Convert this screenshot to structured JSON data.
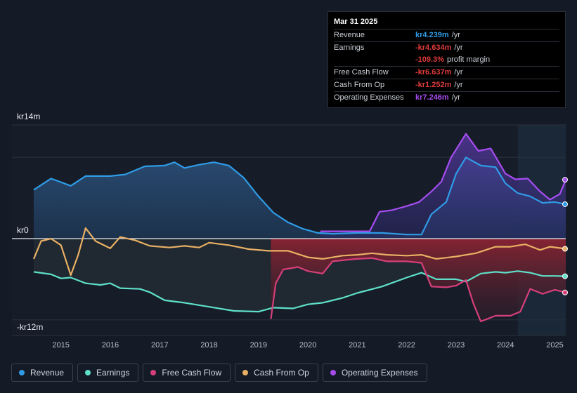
{
  "colors": {
    "revenue": "#2f9be6",
    "earnings": "#5ee0c8",
    "fcf": "#d63f7a",
    "cfo": "#e8b064",
    "opex": "#a64df0"
  },
  "y_axis": {
    "top_label": "kr14m",
    "zero_label": "kr0",
    "bottom_label": "-kr12m"
  },
  "tooltip": {
    "date": "Mar 31 2025",
    "rows": [
      {
        "label": "Revenue",
        "value": "kr4.239m",
        "unit": "/yr",
        "color": "#2f9be6"
      },
      {
        "label": "Earnings",
        "value": "-kr4.634m",
        "unit": "/yr",
        "color": "#e03b3b"
      },
      {
        "label": "",
        "value": "-109.3%",
        "unit": "profit margin",
        "color": "#e03b3b"
      },
      {
        "label": "Free Cash Flow",
        "value": "-kr6.637m",
        "unit": "/yr",
        "color": "#e03b3b"
      },
      {
        "label": "Cash From Op",
        "value": "-kr1.252m",
        "unit": "/yr",
        "color": "#e03b3b"
      },
      {
        "label": "Operating Expenses",
        "value": "kr7.246m",
        "unit": "/yr",
        "color": "#a64df0"
      }
    ]
  },
  "legend": [
    {
      "label": "Revenue",
      "color": "#2f9be6"
    },
    {
      "label": "Earnings",
      "color": "#5ee0c8"
    },
    {
      "label": "Free Cash Flow",
      "color": "#d63f7a"
    },
    {
      "label": "Cash From Op",
      "color": "#e8b064"
    },
    {
      "label": "Operating Expenses",
      "color": "#a64df0"
    }
  ],
  "chart_data": {
    "type": "area",
    "title": "",
    "xlabel": "",
    "ylabel": "",
    "ylim": [
      -12,
      14
    ],
    "x_ticks": [
      "2015",
      "2016",
      "2017",
      "2018",
      "2019",
      "2020",
      "2021",
      "2022",
      "2023",
      "2024",
      "2025"
    ],
    "forecast_start": 2024.25,
    "series": [
      {
        "name": "Revenue",
        "points": [
          [
            2014.45,
            6.0
          ],
          [
            2014.8,
            7.4
          ],
          [
            2015.2,
            6.5
          ],
          [
            2015.5,
            7.7
          ],
          [
            2016.0,
            7.7
          ],
          [
            2016.3,
            7.9
          ],
          [
            2016.7,
            8.9
          ],
          [
            2017.1,
            9.0
          ],
          [
            2017.3,
            9.4
          ],
          [
            2017.5,
            8.7
          ],
          [
            2017.8,
            9.1
          ],
          [
            2018.1,
            9.4
          ],
          [
            2018.4,
            9.0
          ],
          [
            2018.7,
            7.5
          ],
          [
            2019.0,
            5.2
          ],
          [
            2019.3,
            3.2
          ],
          [
            2019.6,
            2.0
          ],
          [
            2019.9,
            1.2
          ],
          [
            2020.2,
            0.7
          ],
          [
            2020.5,
            0.6
          ],
          [
            2021.0,
            0.7
          ],
          [
            2021.5,
            0.7
          ],
          [
            2022.0,
            0.5
          ],
          [
            2022.3,
            0.5
          ],
          [
            2022.5,
            3.0
          ],
          [
            2022.8,
            4.5
          ],
          [
            2023.0,
            8.0
          ],
          [
            2023.2,
            10.0
          ],
          [
            2023.5,
            9.0
          ],
          [
            2023.8,
            8.8
          ],
          [
            2024.0,
            6.8
          ],
          [
            2024.25,
            5.6
          ],
          [
            2024.5,
            5.2
          ],
          [
            2024.75,
            4.4
          ],
          [
            2025.0,
            4.5
          ],
          [
            2025.22,
            4.239
          ]
        ]
      },
      {
        "name": "Earnings",
        "points": [
          [
            2014.45,
            -4.1
          ],
          [
            2014.8,
            -4.4
          ],
          [
            2015.0,
            -4.9
          ],
          [
            2015.2,
            -4.8
          ],
          [
            2015.5,
            -5.5
          ],
          [
            2015.8,
            -5.7
          ],
          [
            2016.0,
            -5.5
          ],
          [
            2016.2,
            -6.1
          ],
          [
            2016.6,
            -6.2
          ],
          [
            2016.8,
            -6.6
          ],
          [
            2017.1,
            -7.6
          ],
          [
            2017.5,
            -7.9
          ],
          [
            2018.0,
            -8.4
          ],
          [
            2018.5,
            -8.9
          ],
          [
            2019.0,
            -9.0
          ],
          [
            2019.3,
            -8.5
          ],
          [
            2019.7,
            -8.6
          ],
          [
            2020.0,
            -8.1
          ],
          [
            2020.3,
            -7.9
          ],
          [
            2020.7,
            -7.3
          ],
          [
            2021.0,
            -6.7
          ],
          [
            2021.5,
            -5.9
          ],
          [
            2022.0,
            -4.8
          ],
          [
            2022.3,
            -4.2
          ],
          [
            2022.6,
            -5.0
          ],
          [
            2023.0,
            -5.0
          ],
          [
            2023.2,
            -5.3
          ],
          [
            2023.5,
            -4.3
          ],
          [
            2023.8,
            -4.1
          ],
          [
            2024.0,
            -4.2
          ],
          [
            2024.25,
            -4.0
          ],
          [
            2024.5,
            -4.2
          ],
          [
            2024.75,
            -4.6
          ],
          [
            2025.0,
            -4.6
          ],
          [
            2025.22,
            -4.634
          ]
        ]
      },
      {
        "name": "Free Cash Flow",
        "points": [
          [
            2019.25,
            -9.9
          ],
          [
            2019.35,
            -5.5
          ],
          [
            2019.5,
            -3.8
          ],
          [
            2019.8,
            -3.5
          ],
          [
            2020.0,
            -4.0
          ],
          [
            2020.3,
            -4.3
          ],
          [
            2020.5,
            -2.8
          ],
          [
            2020.8,
            -2.6
          ],
          [
            2021.0,
            -2.5
          ],
          [
            2021.3,
            -2.4
          ],
          [
            2021.6,
            -2.8
          ],
          [
            2022.0,
            -2.8
          ],
          [
            2022.3,
            -3.0
          ],
          [
            2022.5,
            -5.9
          ],
          [
            2022.8,
            -6.0
          ],
          [
            2023.0,
            -5.8
          ],
          [
            2023.2,
            -5.1
          ],
          [
            2023.35,
            -8.0
          ],
          [
            2023.5,
            -10.2
          ],
          [
            2023.8,
            -9.5
          ],
          [
            2024.1,
            -9.5
          ],
          [
            2024.3,
            -9.0
          ],
          [
            2024.5,
            -6.2
          ],
          [
            2024.75,
            -6.8
          ],
          [
            2025.0,
            -6.3
          ],
          [
            2025.22,
            -6.637
          ]
        ]
      },
      {
        "name": "Cash From Op",
        "points": [
          [
            2014.45,
            -2.5
          ],
          [
            2014.6,
            -0.3
          ],
          [
            2014.8,
            0.0
          ],
          [
            2015.0,
            -0.8
          ],
          [
            2015.2,
            -4.5
          ],
          [
            2015.35,
            -2.0
          ],
          [
            2015.5,
            1.3
          ],
          [
            2015.7,
            -0.3
          ],
          [
            2016.0,
            -1.2
          ],
          [
            2016.2,
            0.2
          ],
          [
            2016.5,
            -0.2
          ],
          [
            2016.8,
            -0.9
          ],
          [
            2017.2,
            -1.1
          ],
          [
            2017.5,
            -0.9
          ],
          [
            2017.8,
            -1.1
          ],
          [
            2018.0,
            -0.5
          ],
          [
            2018.4,
            -0.8
          ],
          [
            2018.8,
            -1.3
          ],
          [
            2019.2,
            -1.5
          ],
          [
            2019.6,
            -1.5
          ],
          [
            2020.0,
            -2.3
          ],
          [
            2020.3,
            -2.5
          ],
          [
            2020.7,
            -2.1
          ],
          [
            2021.0,
            -2.0
          ],
          [
            2021.3,
            -1.8
          ],
          [
            2021.6,
            -2.0
          ],
          [
            2022.0,
            -2.1
          ],
          [
            2022.3,
            -2.0
          ],
          [
            2022.6,
            -2.5
          ],
          [
            2023.0,
            -2.2
          ],
          [
            2023.4,
            -1.8
          ],
          [
            2023.8,
            -1.0
          ],
          [
            2024.1,
            -1.0
          ],
          [
            2024.4,
            -0.7
          ],
          [
            2024.7,
            -1.4
          ],
          [
            2024.9,
            -1.0
          ],
          [
            2025.22,
            -1.252
          ]
        ]
      },
      {
        "name": "Operating Expenses",
        "points": [
          [
            2020.25,
            0.9
          ],
          [
            2020.6,
            0.9
          ],
          [
            2021.0,
            0.9
          ],
          [
            2021.25,
            0.9
          ],
          [
            2021.45,
            3.3
          ],
          [
            2021.7,
            3.5
          ],
          [
            2022.0,
            4.0
          ],
          [
            2022.25,
            4.5
          ],
          [
            2022.5,
            5.8
          ],
          [
            2022.7,
            7.0
          ],
          [
            2022.9,
            10.0
          ],
          [
            2023.2,
            12.9
          ],
          [
            2023.45,
            10.8
          ],
          [
            2023.7,
            11.1
          ],
          [
            2024.0,
            8.0
          ],
          [
            2024.2,
            7.3
          ],
          [
            2024.45,
            7.4
          ],
          [
            2024.7,
            5.8
          ],
          [
            2024.9,
            4.8
          ],
          [
            2025.1,
            5.5
          ],
          [
            2025.22,
            7.246
          ]
        ]
      }
    ]
  }
}
